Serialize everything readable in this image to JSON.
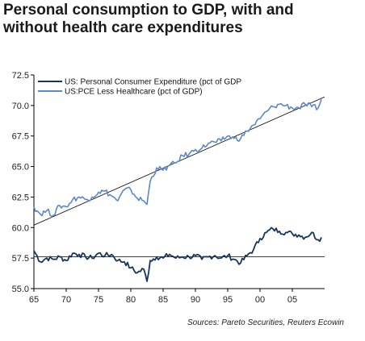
{
  "title_line1": "Personal consumption to GDP, with and",
  "title_line2": "without health care expenditures",
  "source": "Sources: Pareto Securities, Reuters Ecowin",
  "colors": {
    "total": "#16355c",
    "less_healthcare": "#5b87c9",
    "trend": "#000000",
    "axis": "#000000"
  },
  "chart_data": {
    "type": "line",
    "xlabel": "",
    "ylabel": "",
    "xlim": [
      1965,
      2010
    ],
    "ylim": [
      55.0,
      72.5
    ],
    "x_ticks": [
      1965,
      1970,
      1975,
      1980,
      1985,
      1990,
      1995,
      2000,
      2005
    ],
    "x_tick_labels": [
      "65",
      "70",
      "75",
      "80",
      "85",
      "90",
      "95",
      "00",
      "05"
    ],
    "y_ticks": [
      55.0,
      57.5,
      60.0,
      62.5,
      65.0,
      67.5,
      70.0,
      72.5
    ],
    "y_tick_labels": [
      "55.0",
      "57.5",
      "60.0",
      "62.5",
      "65.0",
      "67.5",
      "70.0",
      "72.5"
    ],
    "legend_position": "top-left",
    "series": [
      {
        "name": "US: Personal Consumer Expenditure  (pct of GDP",
        "color_key": "total",
        "points": [
          [
            1965.0,
            58.1
          ],
          [
            1966.0,
            57.2
          ],
          [
            1967.0,
            57.5
          ],
          [
            1968.0,
            57.4
          ],
          [
            1969.0,
            57.6
          ],
          [
            1970.0,
            57.3
          ],
          [
            1971.0,
            57.9
          ],
          [
            1972.0,
            57.8
          ],
          [
            1973.0,
            57.6
          ],
          [
            1974.0,
            57.5
          ],
          [
            1975.0,
            57.9
          ],
          [
            1976.0,
            57.7
          ],
          [
            1977.0,
            57.8
          ],
          [
            1978.0,
            57.3
          ],
          [
            1979.0,
            57.2
          ],
          [
            1980.0,
            56.7
          ],
          [
            1981.0,
            56.3
          ],
          [
            1982.0,
            56.6
          ],
          [
            1982.5,
            55.6
          ],
          [
            1983.0,
            57.3
          ],
          [
            1984.0,
            57.6
          ],
          [
            1985.0,
            57.5
          ],
          [
            1986.0,
            57.8
          ],
          [
            1987.0,
            57.5
          ],
          [
            1988.0,
            57.6
          ],
          [
            1989.0,
            57.6
          ],
          [
            1990.0,
            57.7
          ],
          [
            1991.0,
            57.4
          ],
          [
            1992.0,
            57.6
          ],
          [
            1993.0,
            57.7
          ],
          [
            1994.0,
            57.5
          ],
          [
            1995.0,
            57.7
          ],
          [
            1996.0,
            57.4
          ],
          [
            1997.0,
            57.1
          ],
          [
            1998.0,
            57.7
          ],
          [
            1999.0,
            58.2
          ],
          [
            2000.0,
            59.1
          ],
          [
            2001.0,
            59.6
          ],
          [
            2002.0,
            59.9
          ],
          [
            2003.0,
            59.7
          ],
          [
            2004.0,
            59.6
          ],
          [
            2005.0,
            59.5
          ],
          [
            2006.0,
            59.4
          ],
          [
            2007.0,
            59.2
          ],
          [
            2008.0,
            59.6
          ],
          [
            2009.0,
            59.0
          ],
          [
            2009.5,
            59.2
          ]
        ]
      },
      {
        "name": "US:PCE Less Healthcare (pct of GDP)",
        "color_key": "less_healthcare",
        "points": [
          [
            1965.0,
            61.7
          ],
          [
            1966.0,
            61.1
          ],
          [
            1967.0,
            61.4
          ],
          [
            1968.0,
            61.0
          ],
          [
            1969.0,
            61.8
          ],
          [
            1970.0,
            61.7
          ],
          [
            1971.0,
            62.3
          ],
          [
            1972.0,
            62.5
          ],
          [
            1973.0,
            62.3
          ],
          [
            1974.0,
            62.5
          ],
          [
            1975.0,
            62.9
          ],
          [
            1976.0,
            63.0
          ],
          [
            1977.0,
            62.6
          ],
          [
            1978.0,
            62.2
          ],
          [
            1979.0,
            63.1
          ],
          [
            1980.0,
            63.1
          ],
          [
            1981.0,
            62.4
          ],
          [
            1982.0,
            62.2
          ],
          [
            1982.5,
            61.9
          ],
          [
            1983.0,
            63.8
          ],
          [
            1984.0,
            64.9
          ],
          [
            1985.0,
            64.7
          ],
          [
            1986.0,
            65.1
          ],
          [
            1987.0,
            65.3
          ],
          [
            1988.0,
            65.9
          ],
          [
            1989.0,
            66.0
          ],
          [
            1990.0,
            66.4
          ],
          [
            1991.0,
            66.5
          ],
          [
            1992.0,
            66.9
          ],
          [
            1993.0,
            67.0
          ],
          [
            1994.0,
            67.1
          ],
          [
            1995.0,
            67.5
          ],
          [
            1996.0,
            67.3
          ],
          [
            1997.0,
            67.3
          ],
          [
            1998.0,
            67.9
          ],
          [
            1999.0,
            68.4
          ],
          [
            2000.0,
            68.9
          ],
          [
            2001.0,
            69.5
          ],
          [
            2002.0,
            69.9
          ],
          [
            2003.0,
            70.1
          ],
          [
            2004.0,
            70.0
          ],
          [
            2005.0,
            69.8
          ],
          [
            2006.0,
            69.8
          ],
          [
            2007.0,
            70.1
          ],
          [
            2008.0,
            69.9
          ],
          [
            2009.0,
            69.8
          ],
          [
            2009.5,
            70.5
          ]
        ]
      }
    ],
    "trend_lines": [
      {
        "color_key": "trend",
        "points": [
          [
            1965.0,
            60.2
          ],
          [
            2010.0,
            70.7
          ]
        ]
      },
      {
        "color_key": "trend",
        "points": [
          [
            1965.0,
            57.6
          ],
          [
            2010.0,
            57.6
          ]
        ]
      }
    ]
  }
}
